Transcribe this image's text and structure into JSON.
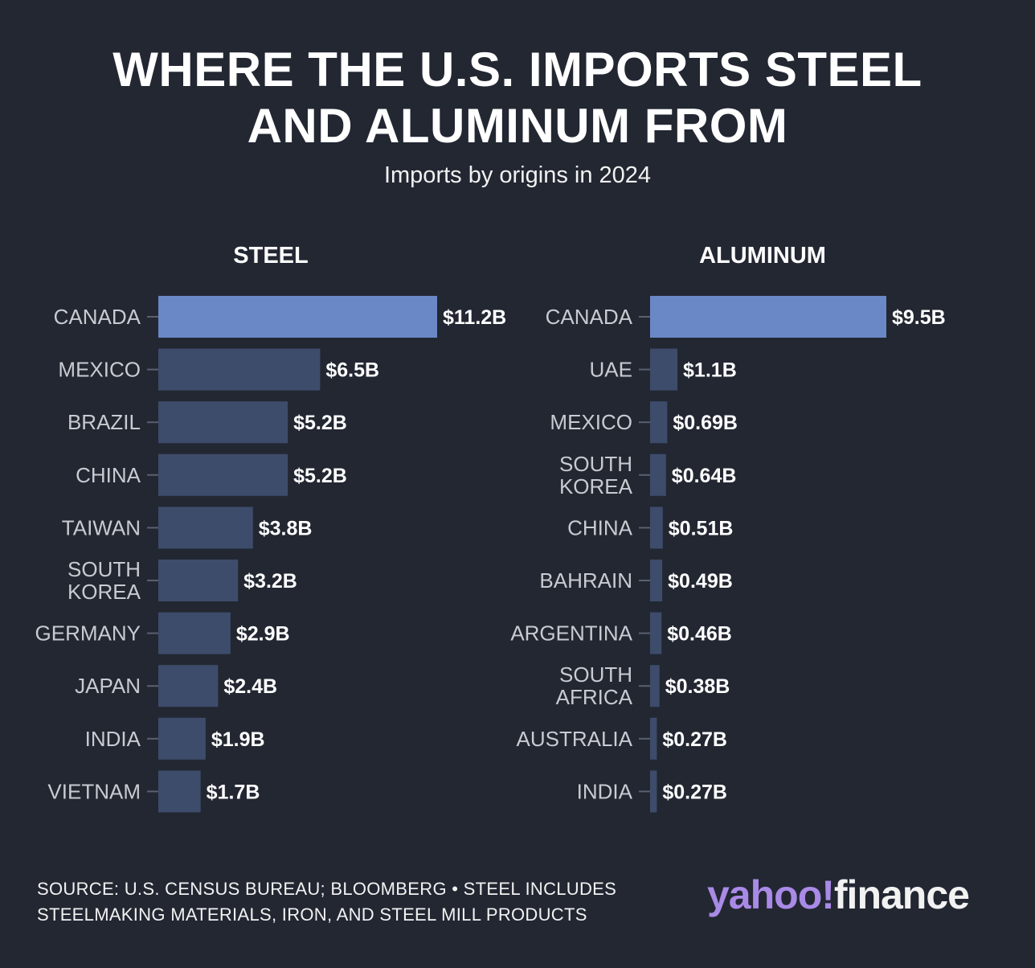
{
  "header": {
    "title_line1": "WHERE THE U.S. IMPORTS STEEL",
    "title_line2": "AND ALUMINUM FROM",
    "subtitle": "Imports by origins in 2024"
  },
  "chart_data": [
    {
      "type": "bar",
      "orientation": "horizontal",
      "title": "STEEL",
      "unit": "billion USD",
      "categories": [
        "CANADA",
        "MEXICO",
        "BRAZIL",
        "CHINA",
        "TAIWAN",
        "SOUTH KOREA",
        "GERMANY",
        "JAPAN",
        "INDIA",
        "VIETNAM"
      ],
      "values": [
        11.2,
        6.5,
        5.2,
        5.2,
        3.8,
        3.2,
        2.9,
        2.4,
        1.9,
        1.7
      ],
      "labels": [
        "$11.2B",
        "$6.5B",
        "$5.2B",
        "$5.2B",
        "$3.8B",
        "$3.2B",
        "$2.9B",
        "$2.4B",
        "$1.9B",
        "$1.7B"
      ],
      "xlim": [
        0,
        11.2
      ],
      "grid": false
    },
    {
      "type": "bar",
      "orientation": "horizontal",
      "title": "ALUMINUM",
      "unit": "billion USD",
      "categories": [
        "CANADA",
        "UAE",
        "MEXICO",
        "SOUTH KOREA",
        "CHINA",
        "BAHRAIN",
        "ARGENTINA",
        "SOUTH AFRICA",
        "AUSTRALIA",
        "INDIA"
      ],
      "values": [
        9.5,
        1.1,
        0.69,
        0.64,
        0.51,
        0.49,
        0.46,
        0.38,
        0.27,
        0.27
      ],
      "labels": [
        "$9.5B",
        "$1.1B",
        "$0.69B",
        "$0.64B",
        "$0.51B",
        "$0.49B",
        "$0.46B",
        "$0.38B",
        "$0.27B",
        "$0.27B"
      ],
      "xlim": [
        0,
        9.5
      ],
      "grid": false
    }
  ],
  "colors": {
    "background": "#222732",
    "highlight_bar": "#6a88c6",
    "bar": "#3e4c6b",
    "category_text": "#c9cbd1",
    "value_text": "#ffffff",
    "tick": "#5a6070",
    "brand_yahoo": "#a98ae6"
  },
  "footer": {
    "source_line1": "SOURCE: U.S. CENSUS BUREAU; BLOOMBERG • STEEL INCLUDES",
    "source_line2": "STEELMAKING MATERIALS, IRON, AND STEEL MILL PRODUCTS",
    "logo_part1": "yahoo!",
    "logo_part2": "finance"
  }
}
